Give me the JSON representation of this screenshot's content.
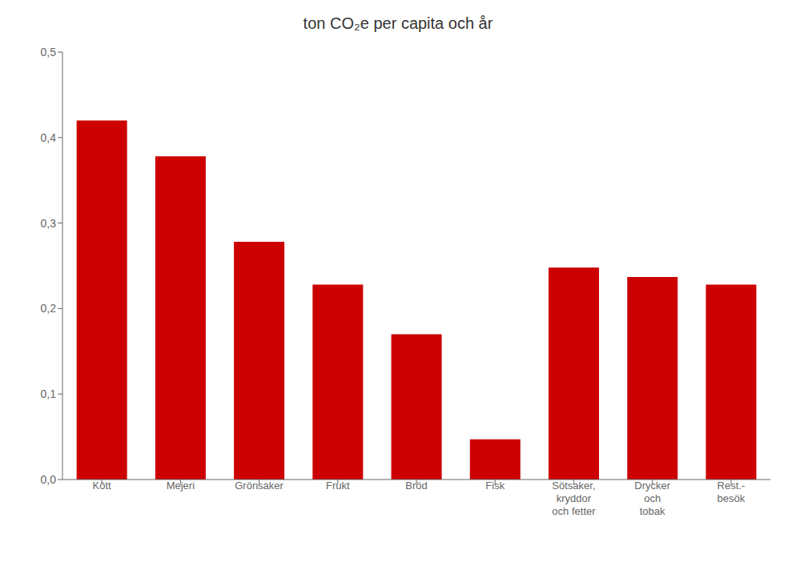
{
  "chart_data": {
    "type": "bar",
    "title": "ton CO₂e per capita och år",
    "categories": [
      "Kött",
      "Mejeri",
      "Grönsaker",
      "Frukt",
      "Bröd",
      "Fisk",
      "Sötsaker,\nkryddor\noch fetter",
      "Drycker\noch\ntobak",
      "Rest.-\nbesök"
    ],
    "values": [
      0.42,
      0.378,
      0.278,
      0.228,
      0.17,
      0.047,
      0.248,
      0.237,
      0.228
    ],
    "color": "#cc0000",
    "ylim": [
      0,
      0.5
    ],
    "yticks": [
      {
        "value": 0.0,
        "label": "0,0"
      },
      {
        "value": 0.1,
        "label": "0,1"
      },
      {
        "value": 0.2,
        "label": "0,2"
      },
      {
        "value": 0.3,
        "label": "0,3"
      },
      {
        "value": 0.4,
        "label": "0,4"
      },
      {
        "value": 0.5,
        "label": "0,5"
      }
    ],
    "grid": false
  }
}
